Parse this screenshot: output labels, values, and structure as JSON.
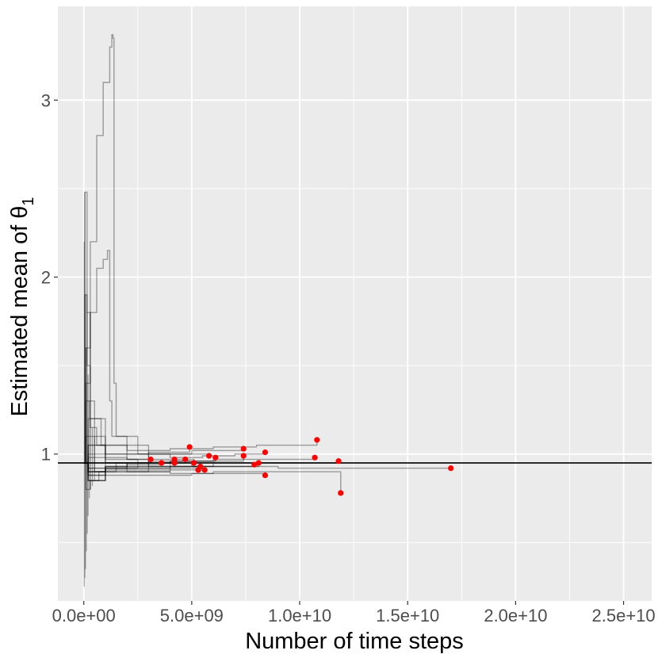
{
  "chart_data": {
    "type": "line",
    "xlabel": "Number of time steps",
    "ylabel": "Estimated mean of θ",
    "ylabel_subscript": "1",
    "xlim": [
      -1200000000.0,
      26300000000.0
    ],
    "ylim": [
      0.17,
      3.53
    ],
    "x_ticks": [
      0,
      5000000000.0,
      10000000000.0,
      15000000000.0,
      20000000000.0,
      25000000000.0
    ],
    "x_tick_labels": [
      "0.0e+00",
      "5.0e+09",
      "1.0e+10",
      "1.5e+10",
      "2.0e+10",
      "2.5e+10"
    ],
    "x_minor_ticks": [
      2500000000.0,
      7500000000.0,
      12500000000.0,
      17500000000.0,
      22500000000.0
    ],
    "y_ticks": [
      1,
      2,
      3
    ],
    "y_tick_labels": [
      "1",
      "2",
      "3"
    ],
    "y_minor_ticks": [
      0.5,
      1.5,
      2.5
    ],
    "grid": true,
    "legend": "none",
    "reference_line": {
      "y": 0.95,
      "color": "#000000"
    },
    "colors": {
      "panel": "#ebebeb",
      "grid": "#ffffff",
      "trace": "#000000",
      "endpoint": "#ff0000"
    },
    "series": [
      {
        "x": [
          0,
          100000000.0,
          300000000.0,
          600000000.0,
          900000000.0,
          1200000000.0,
          1300000000.0,
          1350000000.0,
          1400000000.0,
          1500000000.0,
          2500000000.0,
          4000000000.0,
          5500000000.0,
          7000000000.0,
          8400000000.0
        ],
        "y": [
          0.95,
          1.6,
          2.2,
          2.8,
          3.1,
          3.3,
          3.37,
          3.35,
          1.4,
          1.1,
          1.0,
          0.98,
          0.99,
          1.0,
          1.01
        ]
      },
      {
        "x": [
          0,
          100000000.0,
          300000000.0,
          600000000.0,
          900000000.0,
          1100000000.0,
          1200000000.0,
          1300000000.0,
          2000000000.0,
          4000000000.0,
          6000000000.0,
          8000000000.0,
          10800000000.0
        ],
        "y": [
          0.95,
          1.4,
          1.8,
          2.05,
          2.1,
          2.15,
          1.3,
          1.1,
          1.02,
          1.03,
          1.04,
          1.05,
          1.08
        ]
      },
      {
        "x": [
          0,
          50000000.0,
          150000000.0,
          300000000.0,
          500000000.0,
          1000000000.0,
          2000000000.0,
          4000000000.0,
          6000000000.0,
          8000000000.0,
          11900000000.0
        ],
        "y": [
          0.95,
          2.48,
          1.8,
          1.3,
          1.1,
          0.95,
          0.9,
          0.89,
          0.9,
          0.9,
          0.78
        ]
      },
      {
        "x": [
          0,
          50000000.0,
          150000000.0,
          300000000.0,
          800000000.0,
          2000000000.0,
          3000000000.0,
          5000000000.0,
          7000000000.0,
          9000000000.0,
          12000000000.0,
          15000000000.0,
          17000000000.0
        ],
        "y": [
          0.95,
          1.9,
          1.5,
          1.2,
          1.05,
          0.97,
          0.95,
          0.93,
          0.93,
          0.92,
          0.92,
          0.92,
          0.92
        ]
      },
      {
        "x": [
          0,
          100000000.0,
          300000000.0,
          600000000.0,
          1000000000.0,
          2000000000.0,
          3000000000.0,
          4900000000.0
        ],
        "y": [
          0.95,
          1.3,
          1.15,
          1.05,
          1.0,
          1.0,
          1.01,
          1.04
        ]
      },
      {
        "x": [
          0,
          100000000.0,
          300000000.0,
          700000000.0,
          1500000000.0,
          3000000000.0,
          5000000000.0,
          7400000000.0
        ],
        "y": [
          0.95,
          0.8,
          0.85,
          0.9,
          0.95,
          1.0,
          1.02,
          1.03
        ]
      },
      {
        "x": [
          0,
          100000000.0,
          500000000.0,
          1000000000.0,
          2000000000.0,
          4000000000.0,
          6000000000.0,
          8000000000.0,
          10700000000.0
        ],
        "y": [
          0.95,
          1.1,
          0.9,
          0.92,
          0.95,
          0.96,
          0.97,
          0.97,
          0.98
        ]
      },
      {
        "x": [
          0,
          200000000.0,
          1000000000.0,
          2000000000.0,
          3100000000.0
        ],
        "y": [
          0.95,
          1.0,
          0.98,
          0.97,
          0.97
        ]
      },
      {
        "x": [
          0,
          200000000.0,
          1000000000.0,
          2000000000.0,
          3600000000.0
        ],
        "y": [
          0.95,
          0.9,
          0.93,
          0.94,
          0.95
        ]
      },
      {
        "x": [
          0,
          200000000.0,
          1000000000.0,
          2500000000.0,
          4200000000.0
        ],
        "y": [
          0.95,
          0.88,
          0.92,
          0.95,
          0.97
        ]
      },
      {
        "x": [
          0,
          200000000.0,
          1000000000.0,
          2500000000.0,
          4200000000.0
        ],
        "y": [
          0.95,
          1.05,
          0.97,
          0.95,
          0.95
        ]
      },
      {
        "x": [
          0,
          200000000.0,
          1000000000.0,
          3000000000.0,
          4700000000.0
        ],
        "y": [
          0.95,
          0.85,
          0.9,
          0.95,
          0.97
        ]
      },
      {
        "x": [
          0,
          200000000.0,
          1000000000.0,
          3000000000.0,
          5100000000.0
        ],
        "y": [
          0.95,
          1.05,
          1.0,
          0.97,
          0.95
        ]
      },
      {
        "x": [
          0,
          200000000.0,
          1000000000.0,
          3000000000.0,
          5300000000.0
        ],
        "y": [
          0.95,
          0.92,
          0.92,
          0.92,
          0.91
        ]
      },
      {
        "x": [
          0,
          200000000.0,
          1000000000.0,
          3000000000.0,
          5400000000.0
        ],
        "y": [
          0.95,
          0.98,
          0.95,
          0.93,
          0.93
        ]
      },
      {
        "x": [
          0,
          200000000.0,
          1000000000.0,
          3000000000.0,
          5600000000.0
        ],
        "y": [
          0.95,
          0.9,
          0.91,
          0.91,
          0.91
        ]
      },
      {
        "x": [
          0,
          200000000.0,
          1000000000.0,
          3000000000.0,
          5800000000.0
        ],
        "y": [
          0.95,
          1.2,
          1.05,
          1.0,
          0.99
        ]
      },
      {
        "x": [
          0,
          200000000.0,
          1000000000.0,
          3000000000.0,
          6100000000.0
        ],
        "y": [
          0.95,
          0.92,
          0.95,
          0.96,
          0.98
        ]
      },
      {
        "x": [
          0,
          200000000.0,
          1000000000.0,
          4000000000.0,
          7400000000.0
        ],
        "y": [
          0.95,
          0.88,
          0.93,
          0.96,
          0.99
        ]
      },
      {
        "x": [
          0,
          200000000.0,
          1000000000.0,
          4000000000.0,
          7900000000.0
        ],
        "y": [
          0.95,
          0.9,
          0.92,
          0.93,
          0.94
        ]
      },
      {
        "x": [
          0,
          200000000.0,
          1000000000.0,
          4000000000.0,
          8100000000.0
        ],
        "y": [
          0.95,
          0.85,
          0.9,
          0.93,
          0.95
        ]
      },
      {
        "x": [
          0,
          200000000.0,
          1000000000.0,
          5000000000.0,
          8400000000.0
        ],
        "y": [
          0.95,
          0.85,
          0.88,
          0.89,
          0.88
        ]
      },
      {
        "x": [
          0,
          200000000.0,
          1000000000.0,
          6000000000.0,
          11800000000.0
        ],
        "y": [
          0.95,
          0.9,
          0.93,
          0.95,
          0.96
        ]
      }
    ],
    "spikes": [
      {
        "x": 20000000.0,
        "y": [
          0.25,
          2.2
        ]
      },
      {
        "x": 50000000.0,
        "y": [
          0.3,
          2.48
        ]
      },
      {
        "x": 80000000.0,
        "y": [
          0.35,
          1.9
        ]
      },
      {
        "x": 120000000.0,
        "y": [
          0.45,
          1.6
        ]
      },
      {
        "x": 160000000.0,
        "y": [
          0.55,
          1.8
        ]
      },
      {
        "x": 200000000.0,
        "y": [
          0.65,
          1.45
        ]
      },
      {
        "x": 260000000.0,
        "y": [
          0.75,
          1.3
        ]
      },
      {
        "x": 320000000.0,
        "y": [
          0.8,
          1.2
        ]
      },
      {
        "x": 400000000.0,
        "y": [
          0.82,
          1.15
        ]
      },
      {
        "x": 500000000.0,
        "y": [
          0.85,
          1.1
        ]
      }
    ],
    "endpoints": [
      {
        "x": 3100000000.0,
        "y": 0.97
      },
      {
        "x": 3600000000.0,
        "y": 0.95
      },
      {
        "x": 4200000000.0,
        "y": 0.97
      },
      {
        "x": 4200000000.0,
        "y": 0.95
      },
      {
        "x": 4700000000.0,
        "y": 0.97
      },
      {
        "x": 4900000000.0,
        "y": 1.04
      },
      {
        "x": 5100000000.0,
        "y": 0.95
      },
      {
        "x": 5300000000.0,
        "y": 0.91
      },
      {
        "x": 5400000000.0,
        "y": 0.93
      },
      {
        "x": 5600000000.0,
        "y": 0.91
      },
      {
        "x": 5800000000.0,
        "y": 0.99
      },
      {
        "x": 6100000000.0,
        "y": 0.98
      },
      {
        "x": 7400000000.0,
        "y": 1.03
      },
      {
        "x": 7400000000.0,
        "y": 0.99
      },
      {
        "x": 7900000000.0,
        "y": 0.94
      },
      {
        "x": 8100000000.0,
        "y": 0.95
      },
      {
        "x": 8400000000.0,
        "y": 1.01
      },
      {
        "x": 8400000000.0,
        "y": 0.88
      },
      {
        "x": 10700000000.0,
        "y": 0.98
      },
      {
        "x": 10800000000.0,
        "y": 1.08
      },
      {
        "x": 11800000000.0,
        "y": 0.96
      },
      {
        "x": 11900000000.0,
        "y": 0.78
      },
      {
        "x": 17000000000.0,
        "y": 0.92
      }
    ]
  }
}
